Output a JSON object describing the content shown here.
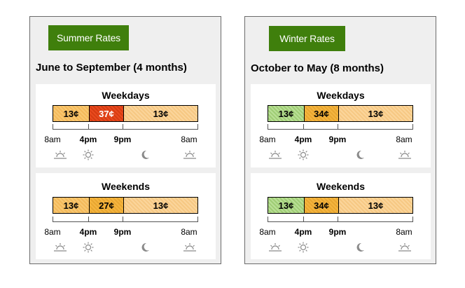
{
  "summer": {
    "button_label": "Summer Rates",
    "period_title": "June to September (4 months)",
    "weekdays": {
      "title": "Weekdays",
      "rates": [
        "13¢",
        "37¢",
        "13¢"
      ]
    },
    "weekends": {
      "title": "Weekends",
      "rates": [
        "13¢",
        "27¢",
        "13¢"
      ]
    }
  },
  "winter": {
    "button_label": "Winter Rates",
    "period_title": "October to May (8 months)",
    "weekdays": {
      "title": "Weekdays",
      "rates": [
        "13¢",
        "34¢",
        "13¢"
      ]
    },
    "weekends": {
      "title": "Weekends",
      "rates": [
        "13¢",
        "34¢",
        "13¢"
      ]
    }
  },
  "time_labels": {
    "start": "8am",
    "peak_start": "4pm",
    "peak_end": "9pm",
    "end": "8am"
  },
  "icons": [
    "sunrise-icon",
    "sun-icon",
    "moon-icon",
    "sunrise-icon"
  ],
  "colors": {
    "button_green": "#3f7f0c",
    "offpeak_orange": "#f4b95a",
    "summer_peak_red": "#e84a1e",
    "midpeak_orange": "#f4b53f",
    "superoffpeak_green": "#9fcd75"
  }
}
